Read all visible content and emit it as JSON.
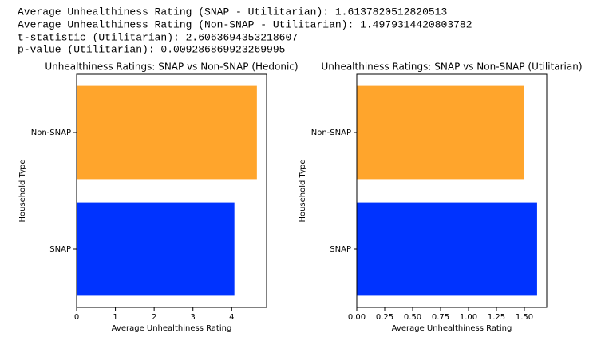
{
  "output_lines": [
    "Average Unhealthiness Rating (SNAP - Utilitarian): 1.6137820512820513",
    "Average Unhealthiness Rating (Non-SNAP - Utilitarian): 1.4979314420803782",
    "t-statistic (Utilitarian): 2.6063694353218607",
    "p-value (Utilitarian): 0.009286869923269995"
  ],
  "chart_data": [
    {
      "type": "barh",
      "title": "Unhealthiness Ratings: SNAP vs Non-SNAP (Hedonic)",
      "xlabel": "Average Unhealthiness Rating",
      "ylabel": "Household Type",
      "categories": [
        "SNAP",
        "Non-SNAP"
      ],
      "values": [
        4.07,
        4.65
      ],
      "colors": [
        "#0033ff",
        "#ffa52c"
      ],
      "xlim": [
        0,
        4.9
      ],
      "xticks": [
        0,
        1,
        2,
        3,
        4
      ]
    },
    {
      "type": "barh",
      "title": "Unhealthiness Ratings: SNAP vs Non-SNAP (Utilitarian)",
      "xlabel": "Average Unhealthiness Rating",
      "ylabel": "Household Type",
      "categories": [
        "SNAP",
        "Non-SNAP"
      ],
      "values": [
        1.6137820512820513,
        1.4979314420803782
      ],
      "colors": [
        "#0033ff",
        "#ffa52c"
      ],
      "xlim": [
        0,
        1.7
      ],
      "xticks": [
        {
          "value": 0,
          "label": "0.00"
        },
        {
          "value": 0.25,
          "label": "0.25"
        },
        {
          "value": 0.5,
          "label": "0.50"
        },
        {
          "value": 0.75,
          "label": "0.75"
        },
        {
          "value": 1,
          "label": "1.00"
        },
        {
          "value": 1.25,
          "label": "1.25"
        },
        {
          "value": 1.5,
          "label": "1.50"
        }
      ]
    }
  ]
}
